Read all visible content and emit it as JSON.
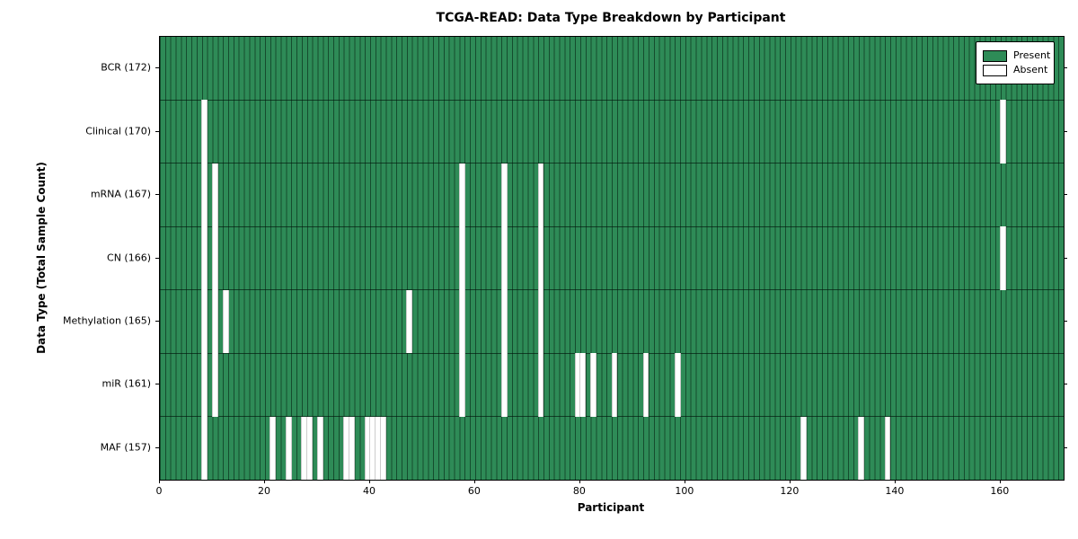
{
  "chart_data": {
    "type": "heatmap",
    "title": "TCGA-READ: Data Type Breakdown by Participant",
    "xlabel": "Participant",
    "ylabel": "Data Type (Total Sample Count)",
    "n_participants": 172,
    "x_ticks": [
      0,
      20,
      40,
      60,
      80,
      100,
      120,
      140,
      160
    ],
    "grid": false,
    "legend_position": "upper right",
    "legend": [
      {
        "label": "Present",
        "color": "#2e8b57"
      },
      {
        "label": "Absent",
        "color": "#ffffff"
      }
    ],
    "rows": [
      {
        "label": "BCR (172)",
        "data_type": "BCR",
        "present_count": 172,
        "absent_participants": []
      },
      {
        "label": "Clinical (170)",
        "data_type": "Clinical",
        "present_count": 170,
        "absent_participants": [
          8,
          160
        ]
      },
      {
        "label": "mRNA (167)",
        "data_type": "mRNA",
        "present_count": 167,
        "absent_participants": [
          8,
          10,
          57,
          65,
          72
        ]
      },
      {
        "label": "CN (166)",
        "data_type": "CN",
        "present_count": 166,
        "absent_participants": [
          8,
          10,
          57,
          65,
          72,
          160
        ]
      },
      {
        "label": "Methylation (165)",
        "data_type": "Methylation",
        "present_count": 165,
        "absent_participants": [
          8,
          10,
          12,
          47,
          57,
          65,
          72
        ]
      },
      {
        "label": "miR (161)",
        "data_type": "miR",
        "present_count": 161,
        "absent_participants": [
          8,
          10,
          57,
          65,
          72,
          79,
          80,
          82,
          86,
          92,
          98
        ]
      },
      {
        "label": "MAF (157)",
        "data_type": "MAF",
        "present_count": 157,
        "absent_participants": [
          8,
          21,
          24,
          27,
          28,
          30,
          35,
          36,
          39,
          40,
          41,
          42,
          122,
          133,
          138
        ]
      }
    ],
    "colors": {
      "present": "#2e8b57",
      "absent": "#ffffff",
      "cell_edge": "rgba(0,24,12,0.55)",
      "row_boundary": "rgba(0,22,11,0.65)",
      "spine": "#000000"
    }
  }
}
